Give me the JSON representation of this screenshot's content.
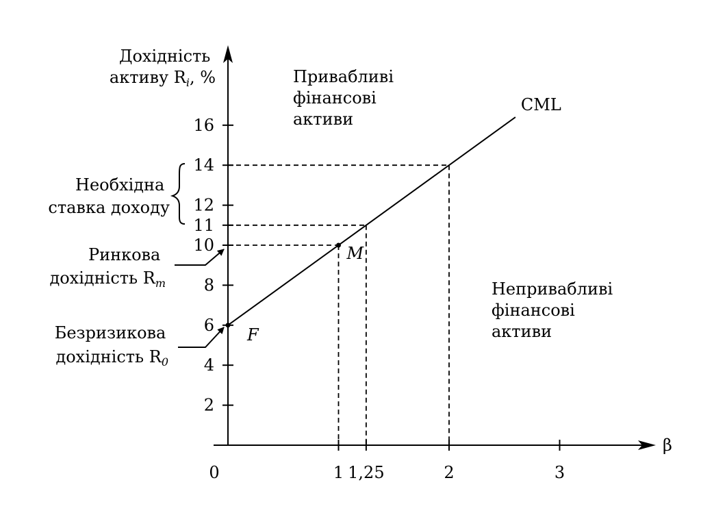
{
  "colors": {
    "foreground": "#000000",
    "background": "#ffffff"
  },
  "chart_data": {
    "type": "line",
    "title": "",
    "xlabel": "β",
    "ylabel_lines": [
      "Дохідність",
      "активу R",
      "i",
      ", %"
    ],
    "xlim": [
      0,
      3.7
    ],
    "ylim": [
      0,
      19
    ],
    "x_ticks": [
      {
        "value": 0,
        "label": "0"
      },
      {
        "value": 1,
        "label": "1"
      },
      {
        "value": 1.25,
        "label": "1,25"
      },
      {
        "value": 2,
        "label": "2"
      },
      {
        "value": 3,
        "label": "3"
      }
    ],
    "y_ticks": [
      {
        "value": 2,
        "label": "2"
      },
      {
        "value": 4,
        "label": "4"
      },
      {
        "value": 6,
        "label": "6"
      },
      {
        "value": 8,
        "label": "8"
      },
      {
        "value": 10,
        "label": "10"
      },
      {
        "value": 11,
        "label": "11"
      },
      {
        "value": 12,
        "label": "12"
      },
      {
        "value": 14,
        "label": "14"
      },
      {
        "value": 16,
        "label": "16"
      }
    ],
    "series": [
      {
        "name": "CML",
        "x": [
          0,
          2.6
        ],
        "y": [
          6,
          16.4
        ]
      }
    ],
    "points": [
      {
        "label": "F",
        "x": 0,
        "y": 6
      },
      {
        "label": "M",
        "x": 1,
        "y": 10
      }
    ],
    "reference_lines": [
      {
        "x": 1,
        "y": 10
      },
      {
        "x": 1.25,
        "y": 11
      },
      {
        "x": 2,
        "y": 14
      }
    ],
    "annotations": {
      "attractive": [
        "Привабливі",
        "фінансові",
        "активи"
      ],
      "unattractive": [
        "Непривабливі",
        "фінансові",
        "активи"
      ],
      "required_rate": [
        "Необхідна",
        "ставка доходу"
      ],
      "market_return": [
        "Ринкова",
        "дохідність R",
        "m"
      ],
      "risk_free": [
        "Безризикова",
        "дохідність R",
        "0"
      ]
    }
  }
}
